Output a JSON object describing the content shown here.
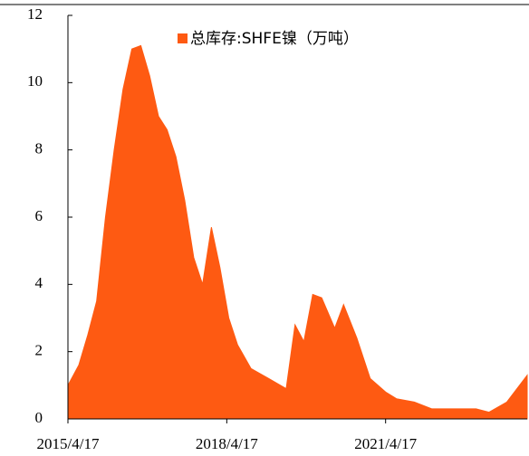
{
  "chart_data": {
    "type": "area",
    "x": [
      "2015/4/17",
      "2015/7/1",
      "2015/9/1",
      "2015/11/1",
      "2016/1/1",
      "2016/3/1",
      "2016/5/1",
      "2016/7/1",
      "2016/9/1",
      "2016/11/1",
      "2017/1/1",
      "2017/3/1",
      "2017/5/1",
      "2017/7/1",
      "2017/9/1",
      "2017/11/1",
      "2018/1/1",
      "2018/3/1",
      "2018/5/1",
      "2018/7/1",
      "2018/10/1",
      "2019/2/1",
      "2019/6/1",
      "2019/8/1",
      "2019/10/1",
      "2019/12/1",
      "2020/2/1",
      "2020/5/1",
      "2020/7/1",
      "2020/10/1",
      "2021/1/1",
      "2021/4/17",
      "2021/7/1",
      "2021/11/1",
      "2022/3/1",
      "2022/8/1",
      "2023/1/1",
      "2023/4/1",
      "2023/8/1",
      "2023/12/20"
    ],
    "series": [
      {
        "name": "总库存:SHFE镍（万吨）",
        "color": "#fe5a12",
        "values": [
          1.0,
          1.6,
          2.5,
          3.5,
          6.0,
          8.0,
          9.8,
          11.0,
          11.1,
          10.2,
          9.0,
          8.6,
          7.8,
          6.5,
          4.8,
          4.0,
          5.7,
          4.5,
          3.0,
          2.2,
          1.5,
          1.2,
          0.9,
          2.8,
          2.3,
          3.7,
          3.6,
          2.7,
          3.4,
          2.4,
          1.2,
          0.8,
          0.6,
          0.5,
          0.3,
          0.3,
          0.3,
          0.2,
          0.5,
          1.3
        ]
      }
    ],
    "xlim": [
      "2015/4/17",
      "2023/12/20"
    ],
    "xticks": [
      "2015/4/17",
      "2018/4/17",
      "2021/4/17"
    ],
    "ylim": [
      0,
      12
    ],
    "yticks": [
      0,
      2,
      4,
      6,
      8,
      10,
      12
    ],
    "legend": "top"
  }
}
